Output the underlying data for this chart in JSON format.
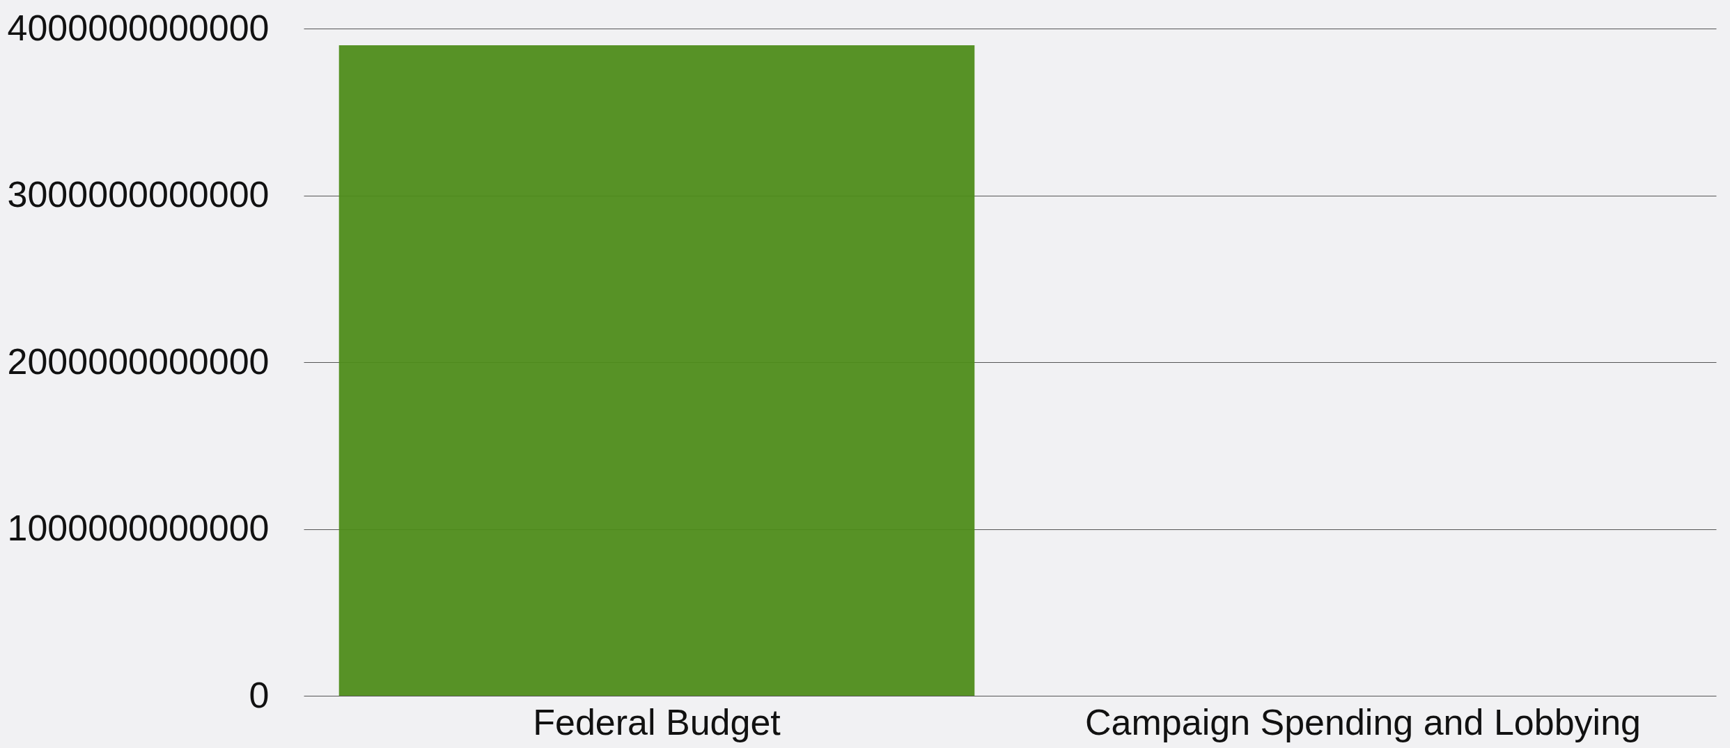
{
  "chart_data": {
    "type": "bar",
    "categories": [
      "Federal Budget",
      "Campaign Spending and Lobbying"
    ],
    "values": [
      3900000000000,
      0
    ],
    "color": "#4e8c1a",
    "ylim": [
      0,
      4000000000000
    ],
    "yticks": [
      0,
      1000000000000,
      2000000000000,
      3000000000000,
      4000000000000
    ],
    "grid": "y"
  }
}
